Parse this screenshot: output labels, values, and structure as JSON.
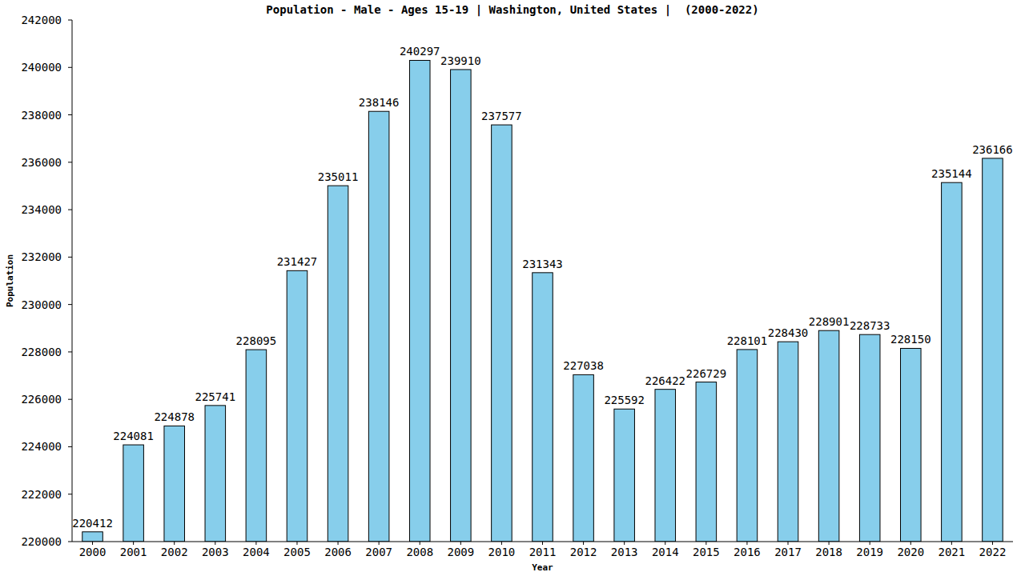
{
  "chart_data": {
    "type": "bar",
    "title": "Population - Male - Ages 15-19 | Washington, United States |  (2000-2022)",
    "x_label": "Year",
    "y_label": "Population",
    "categories": [
      "2000",
      "2001",
      "2002",
      "2003",
      "2004",
      "2005",
      "2006",
      "2007",
      "2008",
      "2009",
      "2010",
      "2011",
      "2012",
      "2013",
      "2014",
      "2015",
      "2016",
      "2017",
      "2018",
      "2019",
      "2020",
      "2021",
      "2022"
    ],
    "values": [
      220412,
      224081,
      224878,
      225741,
      228095,
      231427,
      235011,
      238146,
      240297,
      239910,
      237577,
      231343,
      227038,
      225592,
      226422,
      226729,
      228101,
      228430,
      228901,
      228733,
      228150,
      235144,
      236166
    ],
    "color": "#87ceeb",
    "ylim": [
      220000,
      242000
    ],
    "yticks": [
      220000,
      222000,
      224000,
      226000,
      228000,
      230000,
      232000,
      234000,
      236000,
      238000,
      240000,
      242000
    ],
    "grid": false,
    "data_labels": true
  }
}
